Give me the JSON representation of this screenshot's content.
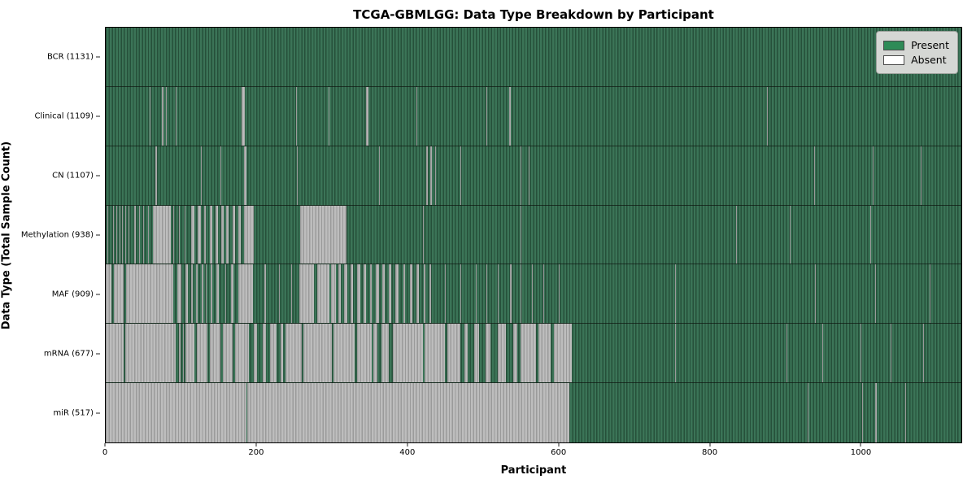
{
  "title": "TCGA-GBMLGG: Data Type Breakdown by Participant",
  "xlabel": "Participant",
  "ylabel": "Data Type (Total Sample Count)",
  "legend": {
    "present_label": "Present",
    "absent_label": "Absent"
  },
  "colors": {
    "present": "#2e8b57",
    "present_stripe_dark": "#26503a",
    "present_stripe_light": "#3b7457",
    "absent": "#ffffff",
    "absent_stripe_dark": "#9a9a9a",
    "absent_stripe_light": "#bdbdbd",
    "legend_background": "#d5d7d4"
  },
  "chart_data": {
    "type": "heatmap",
    "title": "TCGA-GBMLGG: Data Type Breakdown by Participant",
    "xlabel": "Participant",
    "ylabel": "Data Type (Total Sample Count)",
    "legend": [
      "Present",
      "Absent"
    ],
    "legend_position": "upper right",
    "x_ticks": [
      0,
      200,
      400,
      600,
      800,
      1000
    ],
    "x_max": 1134,
    "n_participants": 1131,
    "states": {
      "present_color": "#2e8b57",
      "absent_color": "#ffffff"
    },
    "rows": [
      {
        "name": "BCR",
        "label": "BCR (1131)",
        "present_count": 1131,
        "absent_segments": []
      },
      {
        "name": "Clinical",
        "label": "Clinical (1109)",
        "present_count": 1109,
        "absent_segments": [
          [
            58,
            59
          ],
          [
            74,
            77
          ],
          [
            80,
            81
          ],
          [
            93,
            94
          ],
          [
            103,
            104
          ],
          [
            180,
            184
          ],
          [
            252,
            253
          ],
          [
            295,
            296
          ],
          [
            345,
            348
          ],
          [
            412,
            413
          ],
          [
            505,
            506
          ],
          [
            518,
            519
          ],
          [
            535,
            537
          ],
          [
            876,
            877
          ],
          [
            1016,
            1017
          ]
        ]
      },
      {
        "name": "CN",
        "label": "CN (1107)",
        "present_count": 1107,
        "absent_segments": [
          [
            66,
            68
          ],
          [
            126,
            127
          ],
          [
            152,
            153
          ],
          [
            183,
            187
          ],
          [
            253,
            254
          ],
          [
            362,
            363
          ],
          [
            425,
            427
          ],
          [
            430,
            432
          ],
          [
            437,
            438
          ],
          [
            470,
            471
          ],
          [
            550,
            551
          ],
          [
            560,
            562
          ],
          [
            939,
            940
          ],
          [
            1017,
            1018
          ],
          [
            1080,
            1081
          ]
        ]
      },
      {
        "name": "Methylation",
        "label": "Methylation (938)",
        "present_count": 938,
        "absent_segments": [
          [
            2,
            3
          ],
          [
            6,
            7
          ],
          [
            10,
            11
          ],
          [
            14,
            15
          ],
          [
            18,
            19
          ],
          [
            22,
            23
          ],
          [
            26,
            27
          ],
          [
            30,
            31
          ],
          [
            34,
            35
          ],
          [
            38,
            40
          ],
          [
            44,
            45
          ],
          [
            50,
            51
          ],
          [
            56,
            57
          ],
          [
            62,
            86
          ],
          [
            90,
            91
          ],
          [
            97,
            98
          ],
          [
            105,
            106
          ],
          [
            113,
            118
          ],
          [
            122,
            126
          ],
          [
            130,
            133
          ],
          [
            138,
            141
          ],
          [
            146,
            149
          ],
          [
            153,
            156
          ],
          [
            160,
            163
          ],
          [
            168,
            171
          ],
          [
            176,
            179
          ],
          [
            183,
            196
          ],
          [
            258,
            319
          ],
          [
            420,
            421
          ],
          [
            550,
            551
          ],
          [
            835,
            836
          ],
          [
            907,
            908
          ],
          [
            1013,
            1014
          ]
        ]
      },
      {
        "name": "MAF",
        "label": "MAF (909)",
        "present_count": 909,
        "absent_segments": [
          [
            0,
            8
          ],
          [
            11,
            24
          ],
          [
            27,
            90
          ],
          [
            95,
            100
          ],
          [
            106,
            109
          ],
          [
            113,
            115
          ],
          [
            120,
            122
          ],
          [
            127,
            129
          ],
          [
            133,
            134
          ],
          [
            139,
            141
          ],
          [
            147,
            150
          ],
          [
            158,
            160
          ],
          [
            166,
            169
          ],
          [
            176,
            195
          ],
          [
            210,
            212
          ],
          [
            230,
            231
          ],
          [
            246,
            247
          ],
          [
            257,
            276
          ],
          [
            280,
            296
          ],
          [
            299,
            305
          ],
          [
            308,
            312
          ],
          [
            316,
            320
          ],
          [
            325,
            328
          ],
          [
            333,
            337
          ],
          [
            342,
            345
          ],
          [
            350,
            353
          ],
          [
            358,
            362
          ],
          [
            367,
            370
          ],
          [
            375,
            378
          ],
          [
            384,
            388
          ],
          [
            394,
            397
          ],
          [
            403,
            406
          ],
          [
            412,
            415
          ],
          [
            421,
            424
          ],
          [
            429,
            431
          ],
          [
            450,
            451
          ],
          [
            470,
            471
          ],
          [
            490,
            492
          ],
          [
            505,
            506
          ],
          [
            520,
            521
          ],
          [
            536,
            538
          ],
          [
            550,
            551
          ],
          [
            565,
            566
          ],
          [
            580,
            581
          ],
          [
            600,
            601
          ],
          [
            755,
            756
          ],
          [
            940,
            941
          ],
          [
            1020,
            1021
          ],
          [
            1092,
            1093
          ]
        ]
      },
      {
        "name": "mRNA",
        "label": "mRNA (677)",
        "present_count": 677,
        "absent_segments": [
          [
            0,
            24
          ],
          [
            26,
            93
          ],
          [
            97,
            99
          ],
          [
            102,
            103
          ],
          [
            106,
            118
          ],
          [
            121,
            135
          ],
          [
            138,
            152
          ],
          [
            155,
            168
          ],
          [
            171,
            183
          ],
          [
            183,
            190
          ],
          [
            196,
            200
          ],
          [
            208,
            212
          ],
          [
            218,
            226
          ],
          [
            232,
            235
          ],
          [
            238,
            260
          ],
          [
            262,
            300
          ],
          [
            302,
            330
          ],
          [
            333,
            352
          ],
          [
            355,
            360
          ],
          [
            365,
            375
          ],
          [
            380,
            420
          ],
          [
            423,
            450
          ],
          [
            453,
            470
          ],
          [
            475,
            480
          ],
          [
            488,
            495
          ],
          [
            503,
            510
          ],
          [
            520,
            530
          ],
          [
            540,
            545
          ],
          [
            550,
            570
          ],
          [
            573,
            590
          ],
          [
            594,
            618
          ],
          [
            755,
            756
          ],
          [
            902,
            903
          ],
          [
            950,
            951
          ],
          [
            1000,
            1001
          ],
          [
            1040,
            1041
          ],
          [
            1083,
            1084
          ]
        ]
      },
      {
        "name": "miR",
        "label": "miR (517)",
        "present_count": 517,
        "absent_segments": [
          [
            0,
            186
          ],
          [
            188,
            614
          ],
          [
            930,
            931
          ],
          [
            1003,
            1004
          ],
          [
            1020,
            1022
          ],
          [
            1060,
            1061
          ]
        ]
      }
    ]
  }
}
